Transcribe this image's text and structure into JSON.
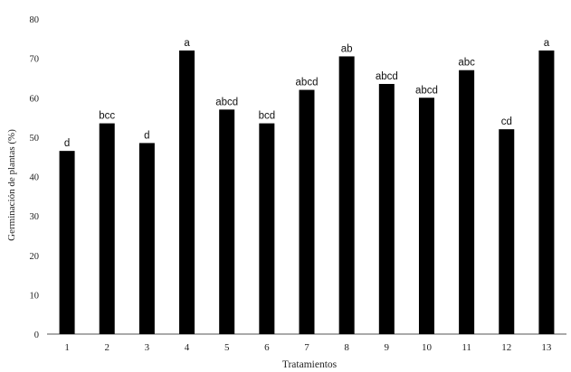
{
  "chart_data": {
    "type": "bar",
    "xlabel": "Tratamientos",
    "ylabel": "Germinación de plantas (%)",
    "ylim": [
      0,
      80
    ],
    "yticks": [
      0,
      10,
      20,
      30,
      40,
      50,
      60,
      70,
      80
    ],
    "grid": false,
    "bar_color": "#000000",
    "categories": [
      "1",
      "2",
      "3",
      "4",
      "5",
      "6",
      "7",
      "8",
      "9",
      "10",
      "11",
      "12",
      "13"
    ],
    "values": [
      46.5,
      53.5,
      48.5,
      72,
      57,
      53.5,
      62,
      70.5,
      63.5,
      60,
      67,
      52,
      72
    ],
    "bar_labels": [
      "d",
      "bcc",
      "d",
      "a",
      "abcd",
      "bcd",
      "abcd",
      "ab",
      "abcd",
      "abcd",
      "abc",
      "cd",
      "a"
    ]
  }
}
